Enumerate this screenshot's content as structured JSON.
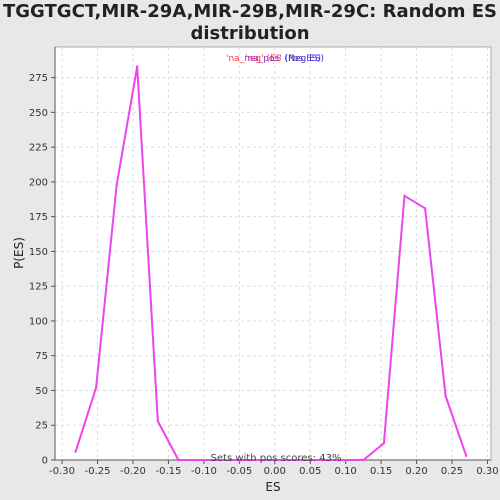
{
  "chart_data": {
    "type": "line",
    "title_line1": "TGGTGCT,MIR-29A,MIR-29B,MIR-29C: Random ES",
    "title_line2": "distribution",
    "xlabel": "ES",
    "ylabel": "P(ES)",
    "xlim": [
      -0.31,
      0.305
    ],
    "ylim": [
      0,
      297
    ],
    "x_ticks": [
      "-0.30",
      "-0.25",
      "-0.20",
      "-0.15",
      "-0.10",
      "-0.05",
      "0.00",
      "0.05",
      "0.10",
      "0.15",
      "0.20",
      "0.25",
      "0.30"
    ],
    "x_tick_values": [
      -0.3,
      -0.25,
      -0.2,
      -0.15,
      -0.1,
      -0.05,
      0.0,
      0.05,
      0.1,
      0.15,
      0.2,
      0.25,
      0.3
    ],
    "y_ticks": [
      "0",
      "25",
      "50",
      "75",
      "100",
      "125",
      "150",
      "175",
      "200",
      "225",
      "250",
      "275"
    ],
    "y_tick_values": [
      0,
      25,
      50,
      75,
      100,
      125,
      150,
      175,
      200,
      225,
      250,
      275
    ],
    "grid": true,
    "legend": {
      "placement": "top-center",
      "entries": [
        {
          "label": "'na_neg' (ES",
          "color": "#ff3333"
        },
        {
          "label": "'na_pos' (Pos ES)",
          "color": "#8833cc"
        },
        {
          "label": "(Neg ES)",
          "color": "#3333dd"
        }
      ]
    },
    "annotation": "Sets with pos scores: 43%",
    "series": [
      {
        "color": "#ee44ee",
        "x": [
          -0.281,
          -0.252,
          -0.223,
          -0.194,
          -0.165,
          -0.136,
          -0.107,
          -0.078,
          -0.049,
          -0.02,
          0.009,
          0.038,
          0.067,
          0.096,
          0.125,
          0.154,
          0.183,
          0.212,
          0.241,
          0.27
        ],
        "y": [
          6,
          52,
          198,
          283,
          28,
          0,
          0,
          0,
          0,
          0,
          0,
          0,
          0,
          0,
          0,
          12,
          190,
          181,
          46,
          3
        ]
      }
    ]
  }
}
